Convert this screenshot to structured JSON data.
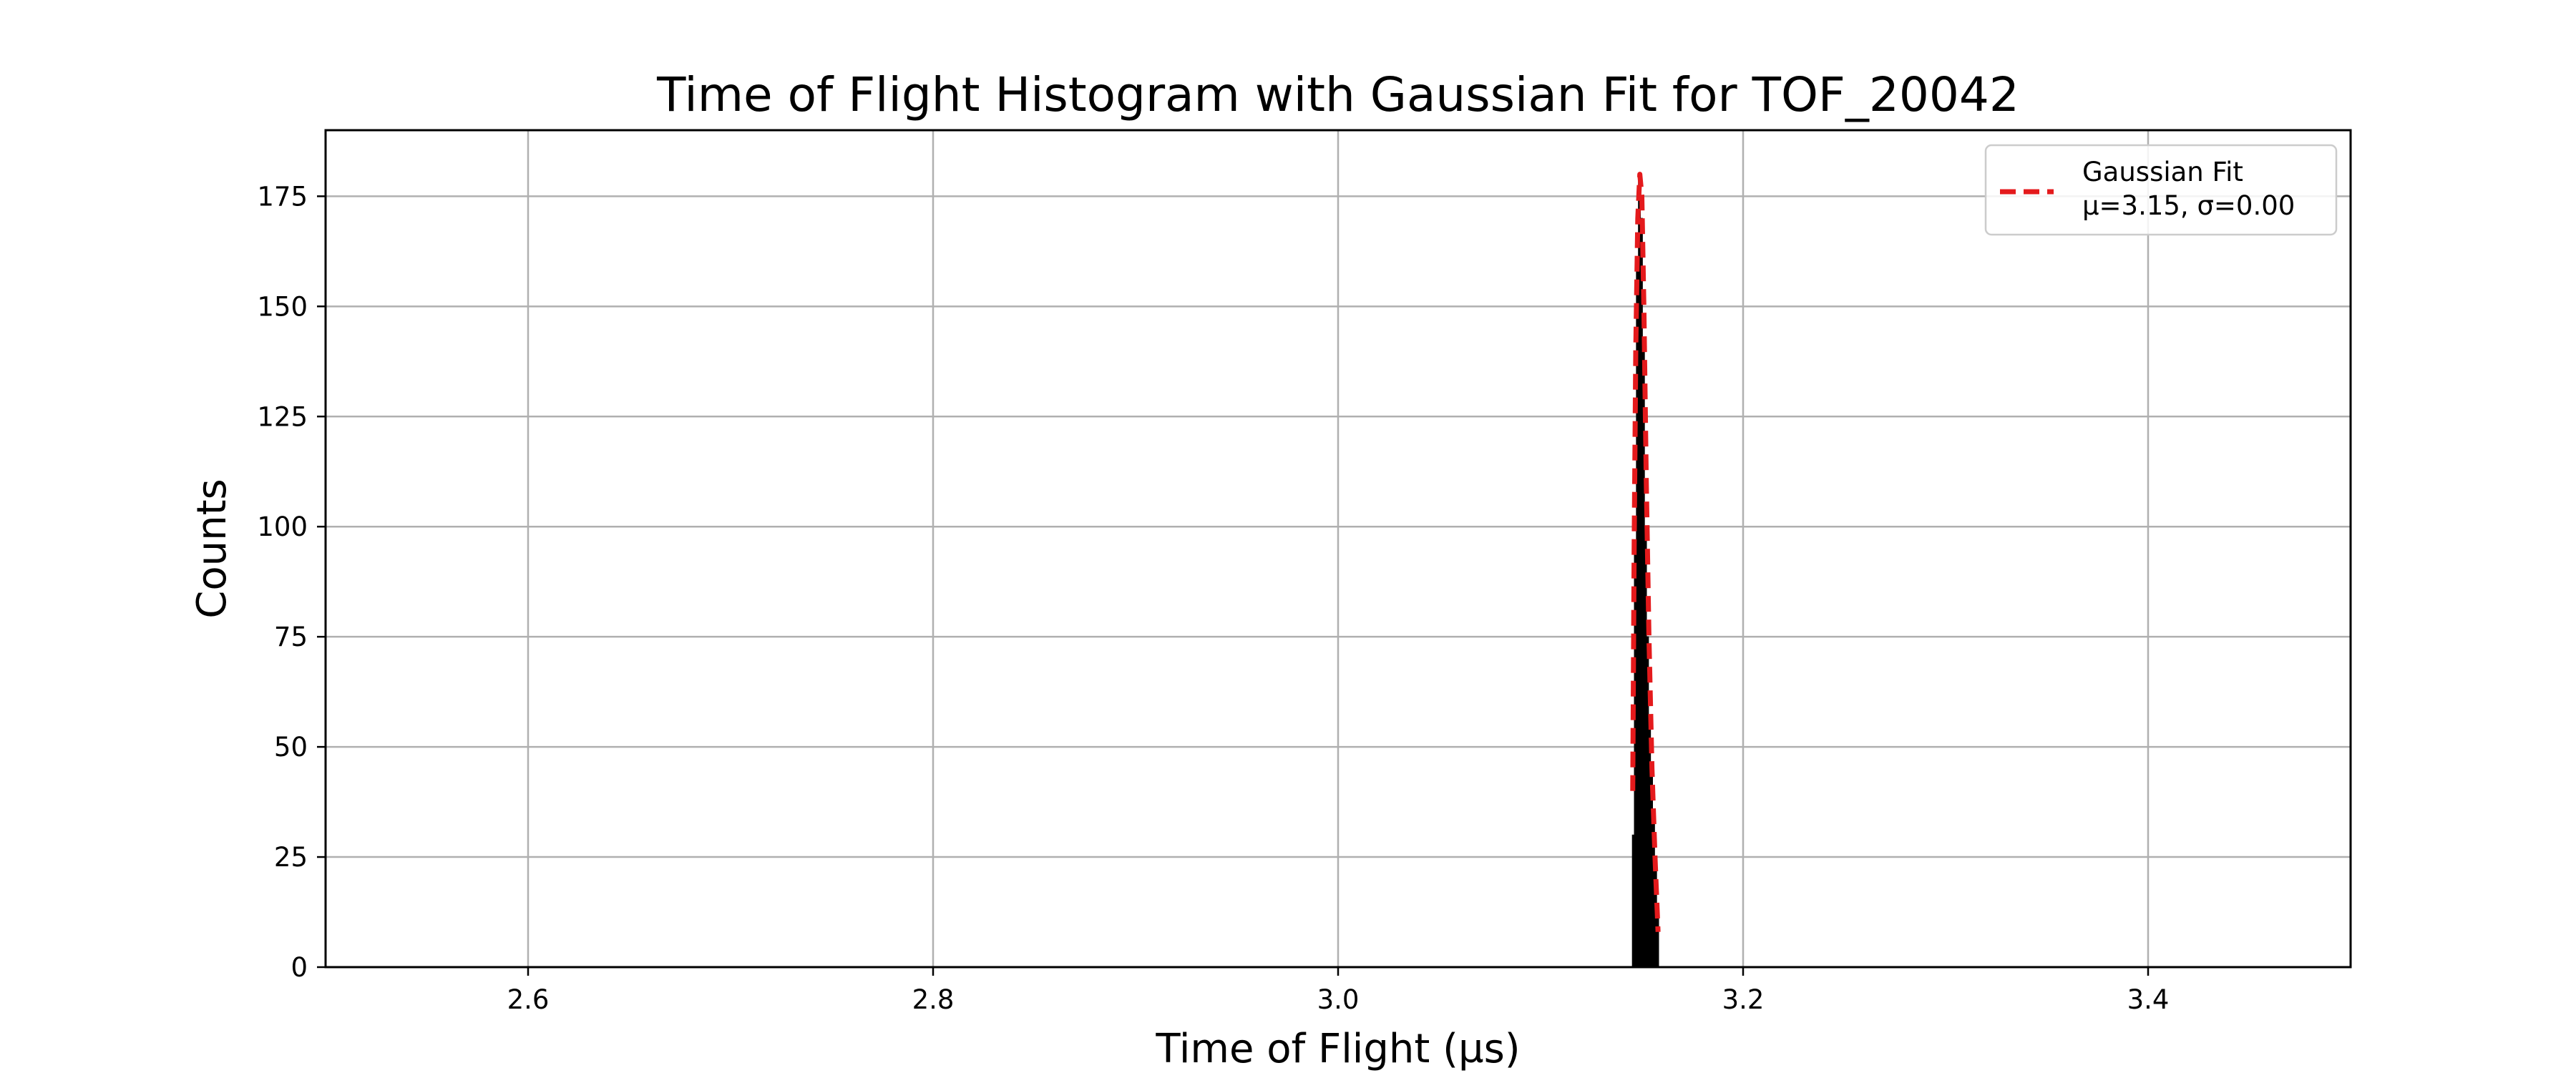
{
  "chart_data": {
    "type": "bar",
    "title": "Time of Flight Histogram with Gaussian Fit for TOF_20042",
    "xlabel": "Time of Flight (µs)",
    "ylabel": "Counts",
    "xlim": [
      2.5,
      3.5
    ],
    "ylim": [
      0,
      190
    ],
    "xticks": [
      2.6,
      2.8,
      3.0,
      3.2,
      3.4
    ],
    "xtick_labels": [
      "2.6",
      "2.8",
      "3.0",
      "3.2",
      "3.4"
    ],
    "yticks": [
      0,
      25,
      50,
      75,
      100,
      125,
      150,
      175
    ],
    "ytick_labels": [
      "0",
      "25",
      "50",
      "75",
      "100",
      "125",
      "150",
      "175"
    ],
    "grid": true,
    "legend_position": "top-right",
    "histogram": {
      "color": "#000000",
      "bins": [
        {
          "x0": 3.1453,
          "x1": 3.1463,
          "count": 30
        },
        {
          "x0": 3.1463,
          "x1": 3.1473,
          "count": 95
        },
        {
          "x0": 3.1473,
          "x1": 3.1483,
          "count": 160
        },
        {
          "x0": 3.1483,
          "x1": 3.1493,
          "count": 180
        },
        {
          "x0": 3.1493,
          "x1": 3.1503,
          "count": 170
        },
        {
          "x0": 3.1503,
          "x1": 3.1513,
          "count": 140
        },
        {
          "x0": 3.1513,
          "x1": 3.1523,
          "count": 100
        },
        {
          "x0": 3.1523,
          "x1": 3.1533,
          "count": 75
        },
        {
          "x0": 3.1533,
          "x1": 3.1543,
          "count": 55
        },
        {
          "x0": 3.1543,
          "x1": 3.1553,
          "count": 45
        },
        {
          "x0": 3.1553,
          "x1": 3.1563,
          "count": 35
        },
        {
          "x0": 3.1563,
          "x1": 3.1573,
          "count": 25
        },
        {
          "x0": 3.1573,
          "x1": 3.1583,
          "count": 12
        }
      ]
    },
    "fit": {
      "name": "Gaussian Fit",
      "legend_detail": "μ=3.15, σ=0.00",
      "color": "#e41a1c",
      "line_style": "dashed",
      "points": [
        {
          "x": 3.1455,
          "y": 40
        },
        {
          "x": 3.1462,
          "y": 95
        },
        {
          "x": 3.147,
          "y": 140
        },
        {
          "x": 3.148,
          "y": 170
        },
        {
          "x": 3.149,
          "y": 180
        },
        {
          "x": 3.15,
          "y": 175
        },
        {
          "x": 3.151,
          "y": 150
        },
        {
          "x": 3.1522,
          "y": 110
        },
        {
          "x": 3.1535,
          "y": 75
        },
        {
          "x": 3.155,
          "y": 45
        },
        {
          "x": 3.1565,
          "y": 25
        },
        {
          "x": 3.158,
          "y": 8
        }
      ]
    }
  }
}
